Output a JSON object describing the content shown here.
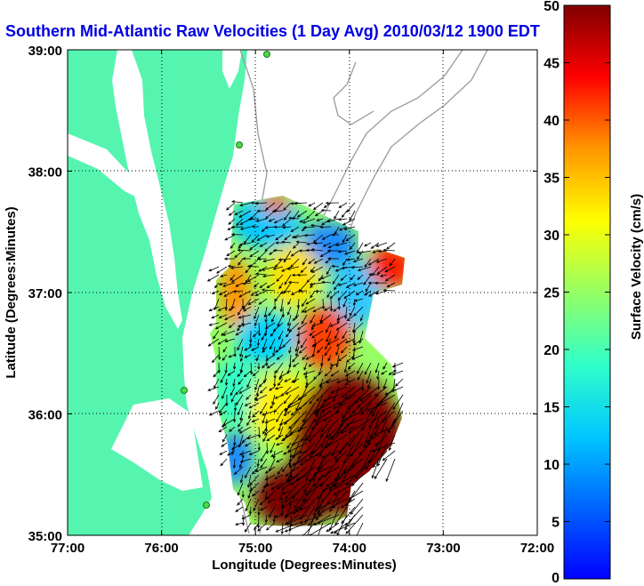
{
  "chart_data": {
    "type": "heatmap",
    "title": "Southern Mid-Atlantic Raw Velocities (1 Day Avg) 2010/03/12 1900 EDT",
    "xlabel": "Longitude (Degrees:Minutes)",
    "ylabel": "Latitude (Degrees:Minutes)",
    "xlim": [
      -77,
      -72
    ],
    "ylim": [
      35,
      39
    ],
    "x_ticks": [
      "77:00",
      "76:00",
      "75:00",
      "74:00",
      "73:00",
      "72:00"
    ],
    "y_ticks": [
      "35:00",
      "36:00",
      "37:00",
      "38:00",
      "39:00"
    ],
    "grid": true,
    "colorbar": {
      "label": "Surface Velocity (cm/s)",
      "range": [
        0,
        50
      ],
      "ticks": [
        "0",
        "5",
        "10",
        "15",
        "20",
        "25",
        "30",
        "35",
        "40",
        "45",
        "50"
      ],
      "colormap": "jet"
    },
    "colors": {
      "land": "#55f5b0",
      "title": "#0000e0",
      "contour": "#9a9a9a"
    },
    "speed_regions": [
      {
        "region": "northern edge of coverage near 37:40N",
        "speed_cm_s": 15
      },
      {
        "region": "nearshore band 36:00N-37:00N",
        "speed_cm_s": 22
      },
      {
        "region": "offshore near 36:20N 74:00W",
        "speed_cm_s": 45
      },
      {
        "region": "southeast region 35:10N-36:00N 73:40W-74:40W",
        "speed_cm_s": 50
      },
      {
        "region": "offshore near 37:00N 73:50W",
        "speed_cm_s": 45
      }
    ]
  }
}
